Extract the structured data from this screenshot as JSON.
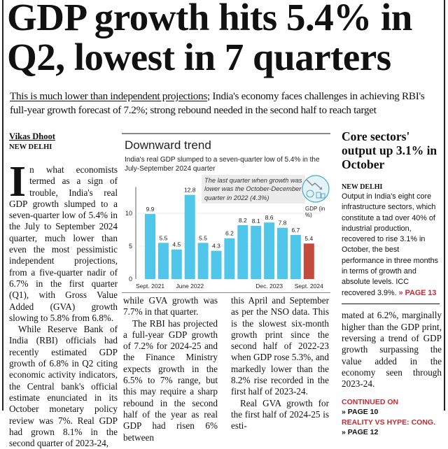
{
  "headline": {
    "line1": "GDP growth hits 5.4% in",
    "line2": "Q2, lowest in 7 quarters"
  },
  "deck": {
    "underlined": "This is much lower than independent projections",
    "rest": "; India's economy faces challenges in achieving RBI's full-year growth forecast of 7.2%; strong rebound needed in the second half to reach target"
  },
  "byline": {
    "author": "Vikas Dhoot",
    "dateline": "NEW DELHI"
  },
  "article": {
    "dropcap": "I",
    "p1": "n what economists termed as a sign of trouble, India's real GDP growth slumped to a seven-quarter low of 5.4% in the July to September 2024 quarter, much lower than even the most pessimistic independent projections, from a five-quarter nadir of 6.7% in the first quarter (Q1), with Gross Value Added (GVA) growth slowing to 5.8% from 6.8%.",
    "p2": "While Reserve Bank of India (RBI) officials had recently estimated GDP growth of 6.8% in Q2 citing economic activity indicators, the Central bank's official estimate enunciated in its October monetary policy review was 7%. Real GDP had grown 8.1% in the second quarter of 2023-24,",
    "p2_cont": "while GVA growth was 7.7% in that quarter.",
    "p3": "The RBI has projected a full-year GDP growth of 7.2% for 2024-25 and the Finance Ministry expects growth in the 6.5% to 7% range, but this may require a sharp rebound in the second half of the year as real GDP had risen 6% between",
    "p3_cont": "this April and September as per the NSO data. This is the slowest six-month growth print since the second half of 2022-23 when GDP rose 5.3%, and markedly lower than the 8.2% rise recorded in the first half of 2023-24.",
    "p4": "Real GVA growth for the first half of 2024-25 is esti-",
    "p4_cont": "mated at 6.2%, marginally higher than the GDP print, reversing a trend of GDP growth surpassing the value added in the economy seen through 2023-24."
  },
  "sidebar": {
    "headline": "Core sectors' output up 3.1% in October",
    "dateline": "NEW DELHI",
    "body": "Output in India's eight core infrastructure sectors, which constitute a tad over 40% of industrial production, recovered to rise 3.1% in October, the best performance in three months in terms of growth and absolute levels. ICC recovered 3.9%.",
    "link": "» PAGE 13"
  },
  "continued": {
    "label": "CONTINUED ON",
    "page1": "» PAGE 10",
    "label2": "REALITY VS HYPE: CONG.",
    "page2": "» PAGE 12"
  },
  "chart_data": {
    "type": "bar",
    "title": "Downward trend",
    "subtitle": "India's real GDP slumped to a seven-quarter low of 5.4% in the July-September 2024 quarter",
    "annotation": "The last quarter when growth was lower was the October-December quarter in 2022 (4.3%)",
    "unit_label": "GDP (in %)",
    "categories": [
      "Sept. 2021",
      "",
      "",
      "June 2022",
      "",
      "",
      "",
      "",
      "",
      "Dec. 2023",
      "",
      "",
      "Sept. 2024"
    ],
    "values": [
      9.9,
      5.5,
      4.5,
      12.8,
      5.5,
      4.3,
      6.2,
      8.2,
      8.1,
      8.6,
      7.8,
      6.7,
      5.4
    ],
    "yticks": [
      0,
      5,
      10
    ],
    "ylim": [
      0,
      14
    ],
    "colors": {
      "bar": "#4fc6ea",
      "highlight": "#c24b3c"
    },
    "highlight_index": 12,
    "icon": "downtrend-coins-globe-icon"
  }
}
